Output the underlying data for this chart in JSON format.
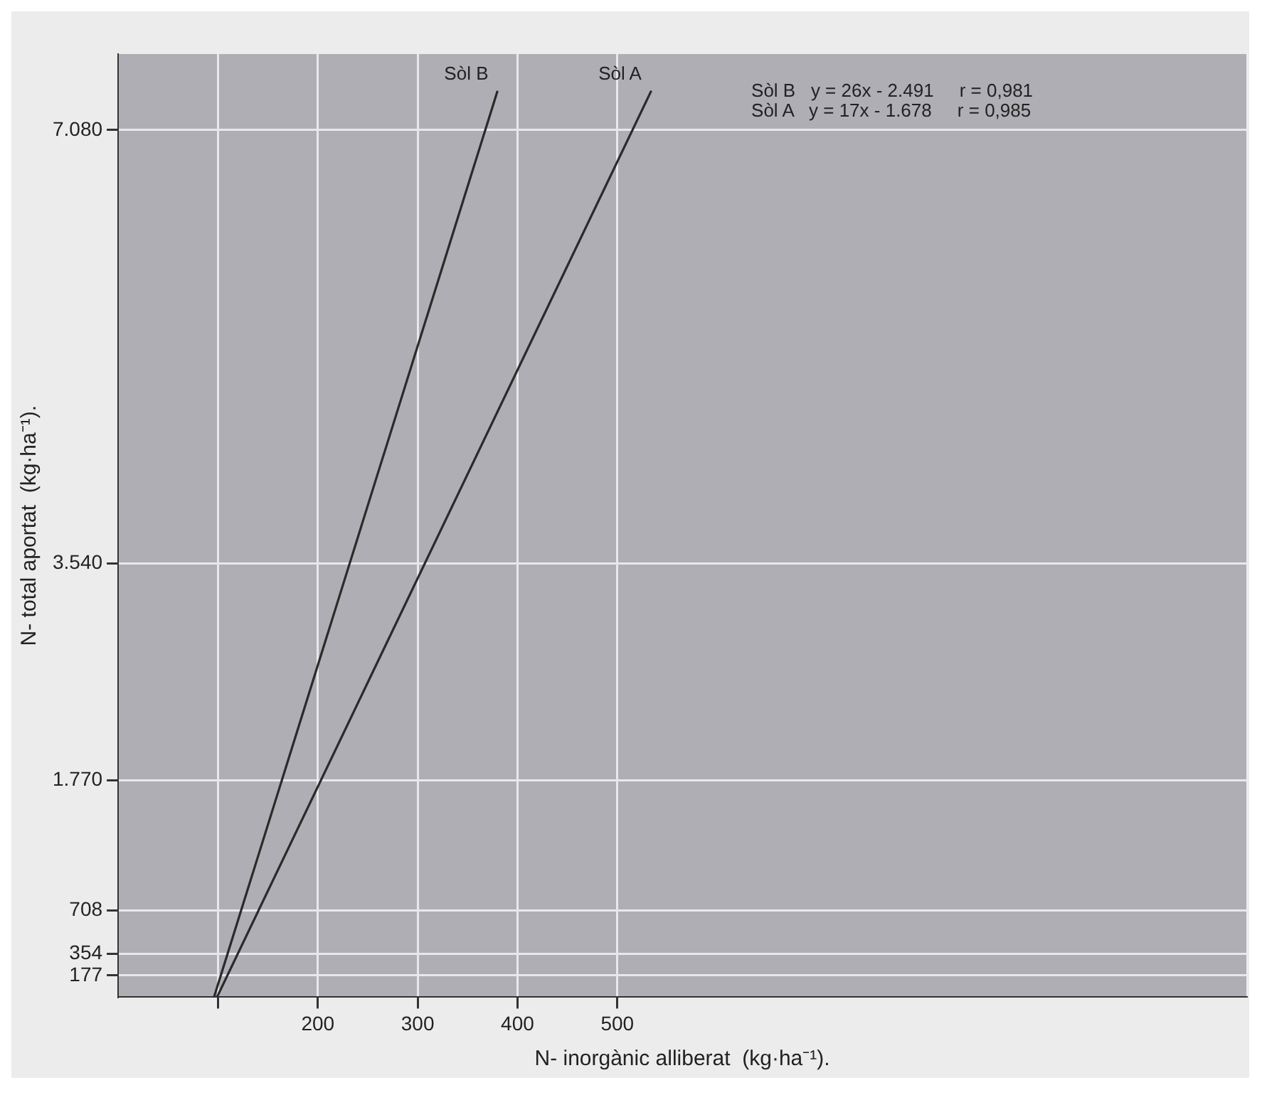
{
  "chart_data": {
    "type": "line",
    "xlabel": "N- inorgànic alliberat  (kg·ha⁻¹).",
    "ylabel": "N- total aportat  (kg·ha⁻¹).",
    "series": [
      {
        "name": "Sòl B",
        "color": "#2a2a2a",
        "x": [
          96,
          380
        ],
        "values": [
          0,
          7400
        ]
      },
      {
        "name": "Sòl A",
        "color": "#2a2a2a",
        "x": [
          99,
          534
        ],
        "values": [
          0,
          7400
        ]
      }
    ],
    "xlim": [
      0,
      1130
    ],
    "xticks": [
      {
        "value": 100,
        "label": null
      },
      200,
      300,
      400,
      500
    ],
    "ylim": [
      0,
      7700
    ],
    "yticks": [
      {
        "value": 177,
        "label": "177"
      },
      {
        "value": 354,
        "label": "354"
      },
      {
        "value": 708,
        "label": "708"
      },
      {
        "value": 1770,
        "label": "1.770"
      },
      {
        "value": 3540,
        "label": "3.540"
      },
      {
        "value": 7080,
        "label": "7.080"
      }
    ],
    "grid": true,
    "legend": false,
    "marker": "none",
    "line_style": "solid",
    "annotations": [
      "Sòl B   y = 26x - 2.491     r = 0,981",
      "Sòl A   y = 17x - 1.678     r = 0,985"
    ]
  }
}
